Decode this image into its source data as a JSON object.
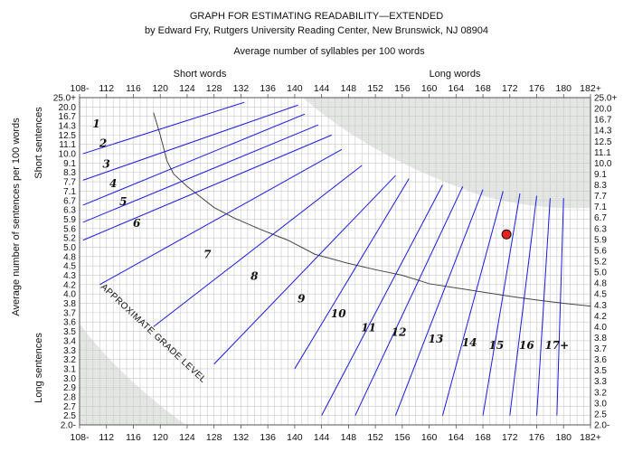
{
  "chart_data": {
    "type": "line",
    "title": "GRAPH FOR ESTIMATING READABILITY—EXTENDED",
    "subtitle": "by Edward Fry, Rutgers University Reading Center, New Brunswick, NJ 08904",
    "xlabel": "Average number of syllables per 100 words",
    "ylabel": "Average number of sentences per 100 words",
    "x_top_left_label": "Short words",
    "x_top_right_label": "Long words",
    "y_top_label": "Short sentences",
    "y_bottom_label": "Long sentences",
    "band_label": "APPROXIMATE GRADE LEVEL",
    "x_ticks": [
      "108-",
      "112",
      "116",
      "120",
      "124",
      "128",
      "132",
      "136",
      "140",
      "144",
      "148",
      "152",
      "156",
      "160",
      "164",
      "168",
      "172",
      "176",
      "180",
      "182+"
    ],
    "y_ticks": [
      "25.0+",
      "20.0",
      "16.7",
      "14.3",
      "12.5",
      "11.1",
      "10.0",
      "9.1",
      "8.3",
      "7.7",
      "7.1",
      "6.7",
      "6.3",
      "5.9",
      "5.6",
      "5.2",
      "5.0",
      "4.8",
      "4.5",
      "4.3",
      "4.2",
      "4.0",
      "3.8",
      "3.7",
      "3.6",
      "3.5",
      "3.4",
      "3.3",
      "3.2",
      "3.1",
      "3.0",
      "2.9",
      "2.8",
      "2.7",
      "2.5",
      "2.0-"
    ],
    "y_ticks_right": [
      "25.0+",
      "20.0",
      "16.7",
      "14.3",
      "12.5",
      "11.1",
      "10.0",
      "9.1",
      "8.3",
      "7.7",
      "7.1",
      "6.7",
      "6.3",
      "5.9",
      "5.6",
      "5.2",
      "5.0",
      "4.8",
      "4.5",
      "4.3",
      "4.2",
      "4.0",
      "3.8",
      "3.7",
      "3.6",
      "3.5",
      "3.3",
      "3.2",
      "3.0",
      "2.5",
      "2.0-"
    ],
    "grade_lines": [
      {
        "x1": 108.5,
        "y1": 10.0,
        "x2": 132.5,
        "y2": 22.5
      },
      {
        "x1": 108.5,
        "y1": 7.8,
        "x2": 140.5,
        "y2": 21.0
      },
      {
        "x1": 108.5,
        "y1": 6.5,
        "x2": 141.5,
        "y2": 17.5
      },
      {
        "x1": 108.5,
        "y1": 5.8,
        "x2": 143.5,
        "y2": 14.5
      },
      {
        "x1": 108.5,
        "y1": 5.15,
        "x2": 145.5,
        "y2": 12.5
      },
      {
        "x1": 111,
        "y1": 4.2,
        "x2": 147,
        "y2": 10.5
      },
      {
        "x1": 119,
        "y1": 3.55,
        "x2": 150,
        "y2": 8.9
      },
      {
        "x1": 128,
        "y1": 3.15,
        "x2": 155,
        "y2": 8.1
      },
      {
        "x1": 140,
        "y1": 3.1,
        "x2": 157,
        "y2": 7.9
      },
      {
        "x1": 144,
        "y1": 2.5,
        "x2": 162,
        "y2": 7.5
      },
      {
        "x1": 149,
        "y1": 2.5,
        "x2": 165,
        "y2": 7.4
      },
      {
        "x1": 155,
        "y1": 2.5,
        "x2": 168,
        "y2": 7.2
      },
      {
        "x1": 162,
        "y1": 2.5,
        "x2": 171,
        "y2": 7.1
      },
      {
        "x1": 168,
        "y1": 2.5,
        "x2": 173.5,
        "y2": 7.0
      },
      {
        "x1": 172,
        "y1": 2.5,
        "x2": 176,
        "y2": 6.9
      },
      {
        "x1": 176,
        "y1": 2.5,
        "x2": 178,
        "y2": 6.8
      },
      {
        "x1": 179,
        "y1": 2.5,
        "x2": 180,
        "y2": 6.8
      }
    ],
    "grade_labels": [
      {
        "text": "1",
        "x": 110.5,
        "y": 14.0
      },
      {
        "text": "2",
        "x": 111.5,
        "y": 10.8
      },
      {
        "text": "3",
        "x": 112,
        "y": 8.7
      },
      {
        "text": "4",
        "x": 113,
        "y": 7.35
      },
      {
        "text": "5",
        "x": 114.5,
        "y": 6.5
      },
      {
        "text": "6",
        "x": 116.5,
        "y": 5.65
      },
      {
        "text": "7",
        "x": 127,
        "y": 4.75
      },
      {
        "text": "8",
        "x": 134,
        "y": 4.25
      },
      {
        "text": "9",
        "x": 141,
        "y": 3.82
      },
      {
        "text": "10",
        "x": 146.5,
        "y": 3.65
      },
      {
        "text": "11",
        "x": 151,
        "y": 3.5
      },
      {
        "text": "12",
        "x": 155.5,
        "y": 3.45
      },
      {
        "text": "13",
        "x": 161,
        "y": 3.38
      },
      {
        "text": "14",
        "x": 166,
        "y": 3.34
      },
      {
        "text": "15",
        "x": 170,
        "y": 3.31
      },
      {
        "text": "16",
        "x": 174.5,
        "y": 3.31
      },
      {
        "text": "17+",
        "x": 179,
        "y": 3.31
      }
    ],
    "curve_points": [
      {
        "x": 119,
        "y": 18.0
      },
      {
        "x": 120,
        "y": 12.5
      },
      {
        "x": 121,
        "y": 9.3
      },
      {
        "x": 122,
        "y": 8.2
      },
      {
        "x": 124,
        "y": 7.4
      },
      {
        "x": 126,
        "y": 6.85
      },
      {
        "x": 128,
        "y": 6.4
      },
      {
        "x": 131,
        "y": 5.95
      },
      {
        "x": 135,
        "y": 5.55
      },
      {
        "x": 139,
        "y": 5.15
      },
      {
        "x": 143,
        "y": 4.85
      },
      {
        "x": 148,
        "y": 4.58
      },
      {
        "x": 152,
        "y": 4.42
      },
      {
        "x": 156,
        "y": 4.3
      },
      {
        "x": 160,
        "y": 4.21
      },
      {
        "x": 164,
        "y": 4.13
      },
      {
        "x": 168,
        "y": 4.04
      },
      {
        "x": 172,
        "y": 3.95
      },
      {
        "x": 176,
        "y": 3.87
      },
      {
        "x": 180,
        "y": 3.8
      },
      {
        "x": 182,
        "y": 3.77
      }
    ],
    "point": {
      "x": 171.5,
      "y": 5.35,
      "color": "#e8231e"
    },
    "colors": {
      "grade_line": "#1a1ae0",
      "curve": "#444444",
      "grid": "#c8c8c8",
      "shade": "#e4e6e4"
    },
    "grid": true
  }
}
